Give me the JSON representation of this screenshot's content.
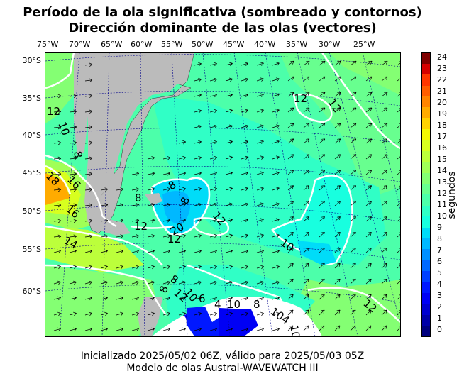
{
  "title": {
    "line1": "Período de la ola significativa (sombreado y contornos)",
    "line2": "Dirección dominante de las olas (vectores)"
  },
  "lon_ticks": [
    "75°W",
    "70°W",
    "65°W",
    "60°W",
    "55°W",
    "50°W",
    "45°W",
    "40°W",
    "35°W",
    "30°W",
    "25°W"
  ],
  "lat_ticks": [
    "30°S",
    "35°S",
    "40°S",
    "45°S",
    "50°S",
    "55°S",
    "60°S"
  ],
  "colorbar": {
    "label": "segundos",
    "ticks": [
      "0",
      "1",
      "2",
      "3",
      "4",
      "5",
      "6",
      "7",
      "8",
      "9",
      "10",
      "11",
      "12",
      "13",
      "14",
      "15",
      "16",
      "17",
      "18",
      "19",
      "20",
      "21",
      "22",
      "23",
      "24"
    ],
    "colors": [
      "#00007f",
      "#0000a8",
      "#0000d0",
      "#0000f5",
      "#0018ff",
      "#0040ff",
      "#0068ff",
      "#0090ff",
      "#00b8ff",
      "#00dcf8",
      "#18ffdf",
      "#30ffc6",
      "#4cffaa",
      "#68ff8f",
      "#84ff73",
      "#a0ff57",
      "#bcff3b",
      "#d8ff1f",
      "#f4f802",
      "#ffd200",
      "#ffab00",
      "#ff8400",
      "#ff5d00",
      "#ff3600",
      "#d50000",
      "#7f0000"
    ]
  },
  "contour_labels": [
    "12",
    "12",
    "12",
    "10",
    "8",
    "8",
    "16",
    "18",
    "16",
    "14",
    "8",
    "8",
    "12",
    "12",
    "12",
    "20",
    "10",
    "8",
    "8",
    "12",
    "10",
    "6",
    "4",
    "10",
    "8",
    "104",
    "10",
    "12"
  ],
  "footer": {
    "line1": "Inicializado 2025/05/02 06Z, válido para 2025/05/03 05Z",
    "line2": "Modelo de olas Austral-WAVEWATCH III"
  },
  "colors": {
    "land": "#bbbbbb",
    "no_data": "#ffffff",
    "contour": "#ffffff",
    "graticule": "#00008b"
  }
}
